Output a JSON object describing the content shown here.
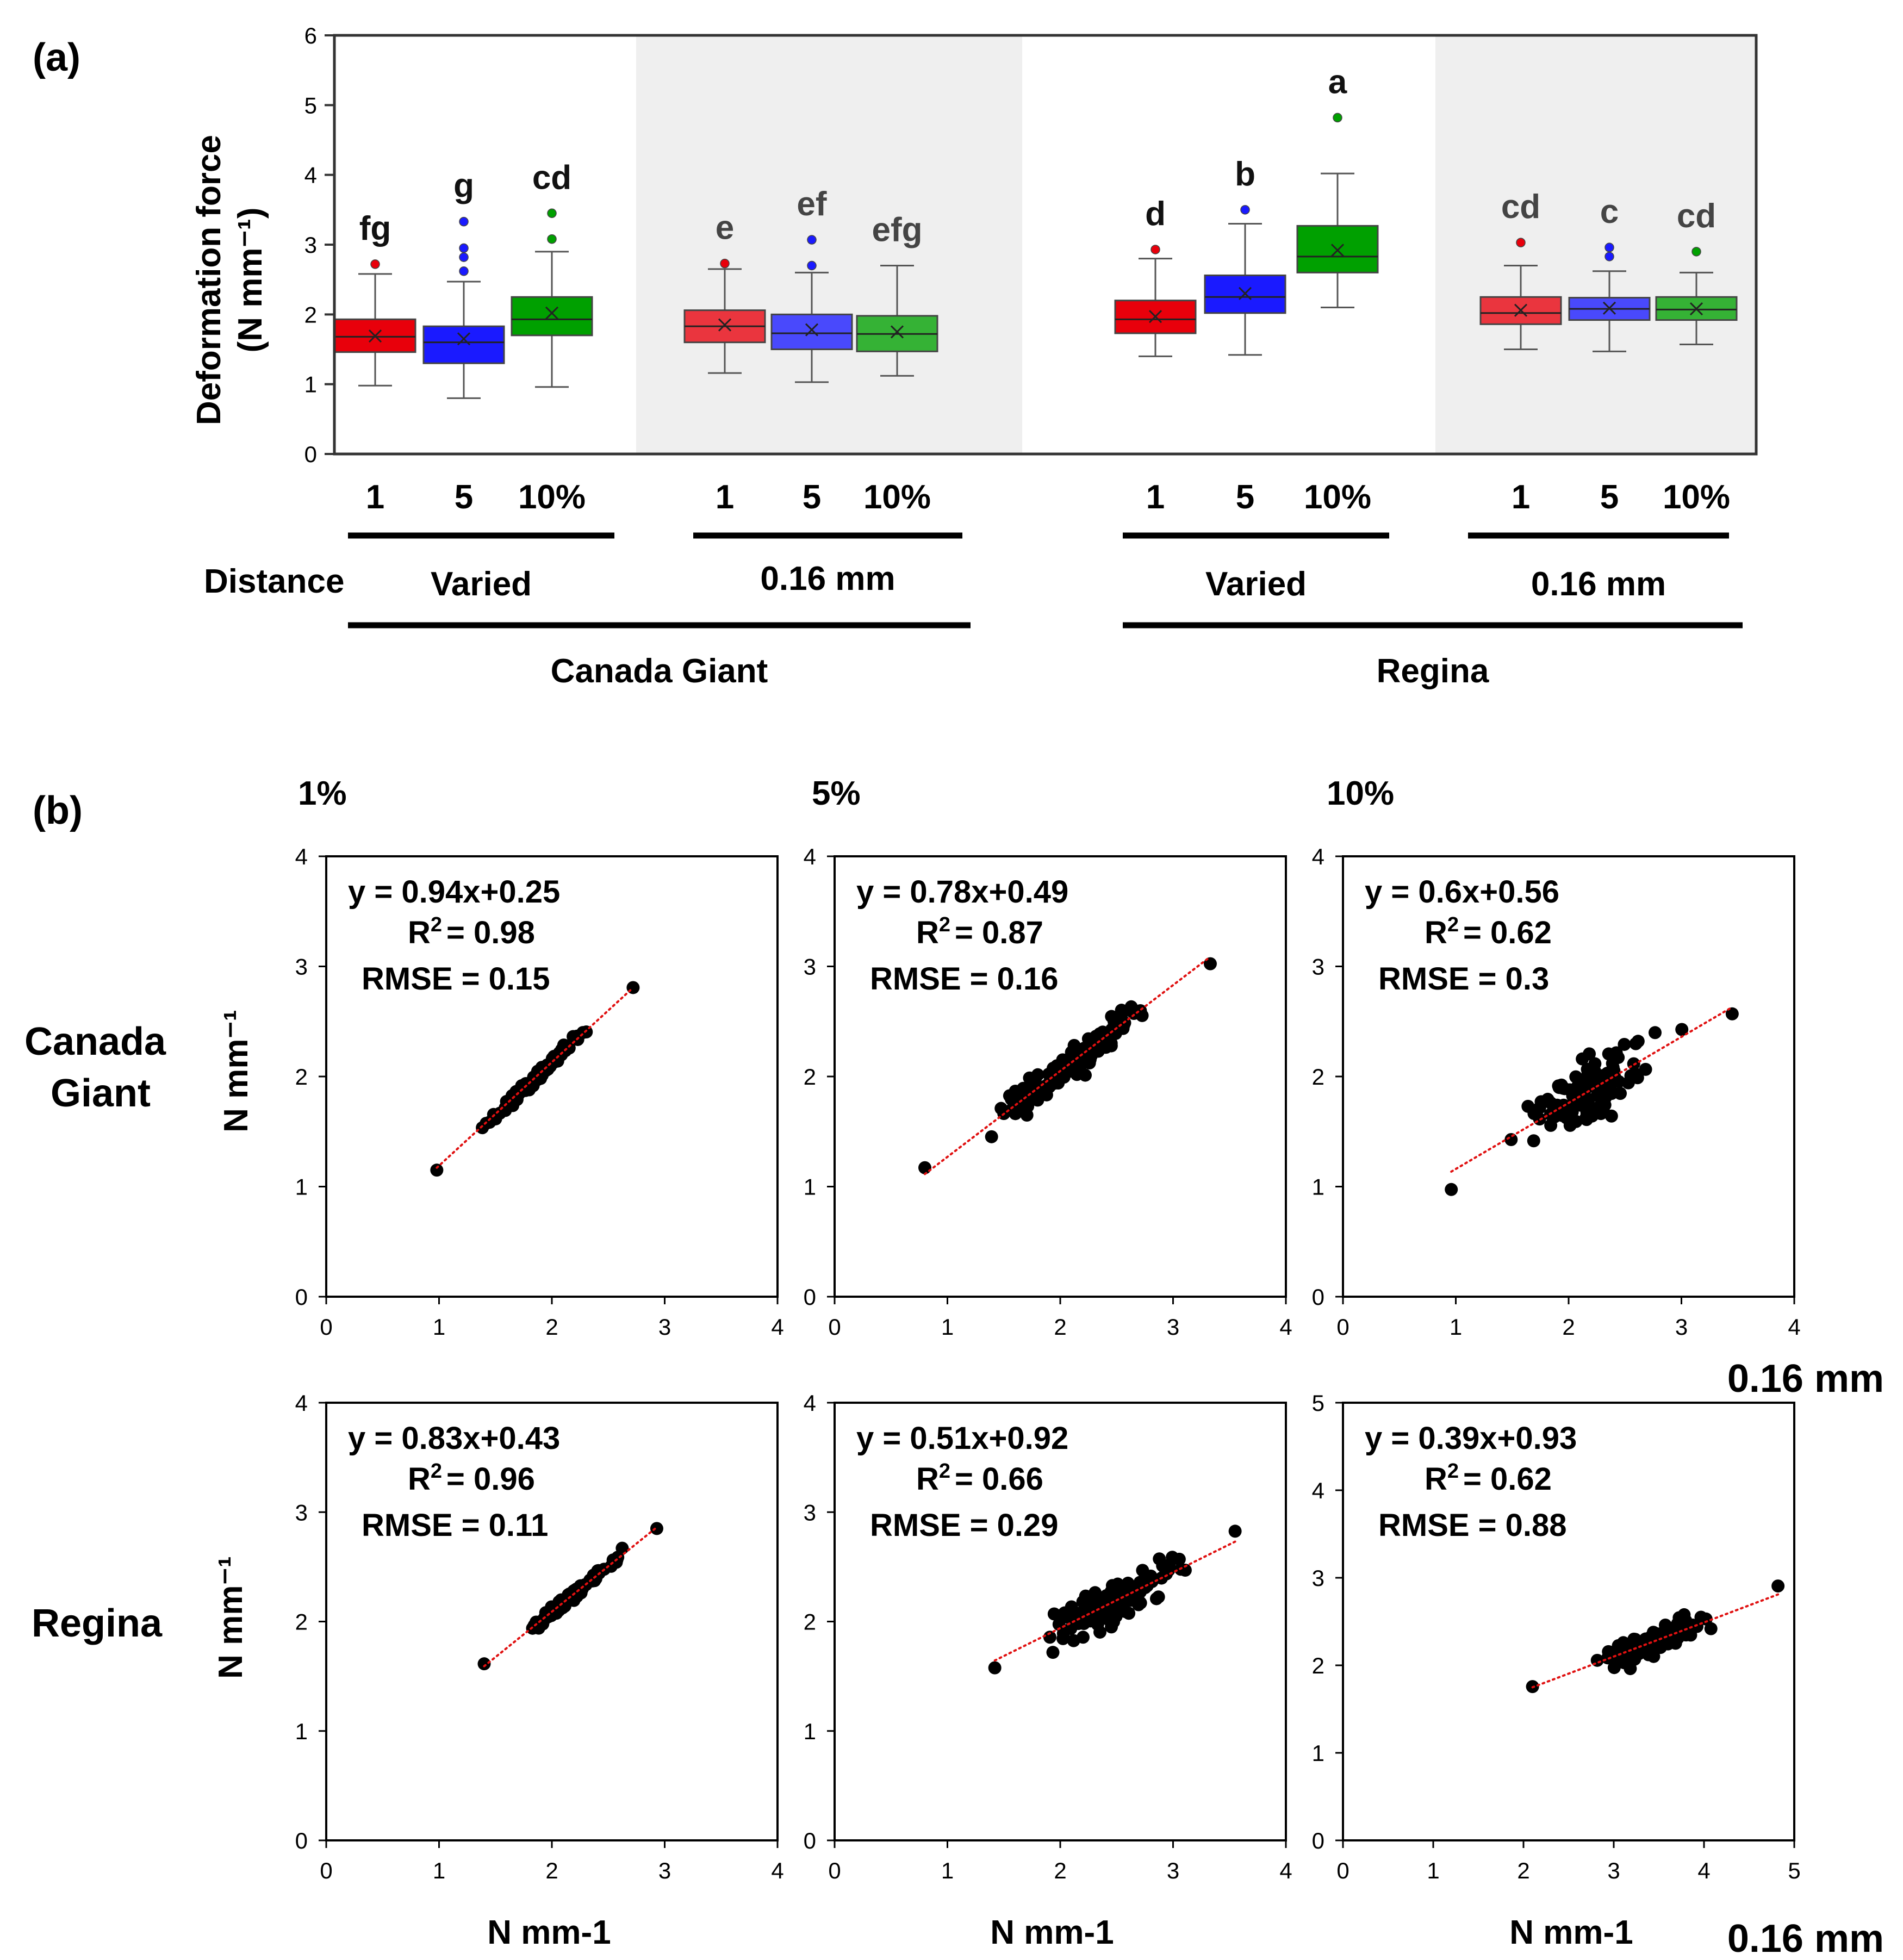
{
  "chart_data": [
    {
      "panel_label": "(a)",
      "type": "box",
      "ylabel": "Deformation force",
      "ylabel_unit": "(N mm⁻¹)",
      "ylim": [
        0,
        6
      ],
      "yticks": [
        "0",
        "1",
        "2",
        "3",
        "4",
        "5",
        "6"
      ],
      "distance_label": "Distance",
      "colors": {
        "1": "#e8000b",
        "5": "#1a1aff",
        "10%": "#00a000"
      },
      "shaded_groups": [
        1,
        3
      ],
      "cultivars": [
        {
          "name": "Canada Giant",
          "groups": [
            0,
            1
          ]
        },
        {
          "name": "Regina",
          "groups": [
            2,
            3
          ]
        }
      ],
      "groups": [
        {
          "distance": "Varied",
          "boxes": [
            {
              "category": "1",
              "min": 0.98,
              "q1": 1.46,
              "median": 1.68,
              "q3": 1.93,
              "max": 2.58,
              "mean": 1.69,
              "outliers": [
                2.72
              ],
              "letter": "fg"
            },
            {
              "category": "5",
              "min": 0.8,
              "q1": 1.3,
              "median": 1.6,
              "q3": 1.83,
              "max": 2.47,
              "mean": 1.65,
              "outliers": [
                2.62,
                2.82,
                2.95,
                3.33
              ],
              "letter": "g"
            },
            {
              "category": "10%",
              "min": 0.96,
              "q1": 1.7,
              "median": 1.93,
              "q3": 2.25,
              "max": 2.9,
              "mean": 2.02,
              "outliers": [
                3.08,
                3.45
              ],
              "letter": "cd"
            }
          ]
        },
        {
          "distance": "0.16 mm",
          "boxes": [
            {
              "category": "1",
              "min": 1.16,
              "q1": 1.6,
              "median": 1.83,
              "q3": 2.06,
              "max": 2.65,
              "mean": 1.85,
              "outliers": [
                2.73
              ],
              "letter": "e"
            },
            {
              "category": "5",
              "min": 1.03,
              "q1": 1.5,
              "median": 1.73,
              "q3": 2.0,
              "max": 2.6,
              "mean": 1.78,
              "outliers": [
                2.7,
                3.07
              ],
              "letter": "ef"
            },
            {
              "category": "10%",
              "min": 1.12,
              "q1": 1.47,
              "median": 1.72,
              "q3": 1.98,
              "max": 2.7,
              "mean": 1.75,
              "outliers": [],
              "letter": "efg"
            }
          ]
        },
        {
          "distance": "Varied",
          "boxes": [
            {
              "category": "1",
              "min": 1.4,
              "q1": 1.73,
              "median": 1.93,
              "q3": 2.2,
              "max": 2.8,
              "mean": 1.97,
              "outliers": [
                2.93
              ],
              "letter": "d"
            },
            {
              "category": "5",
              "min": 1.42,
              "q1": 2.02,
              "median": 2.25,
              "q3": 2.56,
              "max": 3.3,
              "mean": 2.3,
              "outliers": [
                3.5
              ],
              "letter": "b"
            },
            {
              "category": "10%",
              "min": 2.1,
              "q1": 2.6,
              "median": 2.83,
              "q3": 3.27,
              "max": 4.02,
              "mean": 2.92,
              "outliers": [
                4.82
              ],
              "letter": "a"
            }
          ]
        },
        {
          "distance": "0.16 mm",
          "boxes": [
            {
              "category": "1",
              "min": 1.5,
              "q1": 1.86,
              "median": 2.02,
              "q3": 2.25,
              "max": 2.7,
              "mean": 2.06,
              "outliers": [
                3.03
              ],
              "letter": "cd"
            },
            {
              "category": "5",
              "min": 1.47,
              "q1": 1.92,
              "median": 2.08,
              "q3": 2.24,
              "max": 2.62,
              "mean": 2.09,
              "outliers": [
                2.83,
                2.96
              ],
              "letter": "c"
            },
            {
              "category": "10%",
              "min": 1.57,
              "q1": 1.92,
              "median": 2.07,
              "q3": 2.25,
              "max": 2.6,
              "mean": 2.08,
              "outliers": [
                2.9
              ],
              "letter": "cd"
            }
          ]
        }
      ]
    },
    {
      "panel_label": "(b)",
      "type": "scatter",
      "column_headers": [
        "1%",
        "5%",
        "10%"
      ],
      "row_headers": [
        [
          "Canada",
          "Giant"
        ],
        [
          "Regina"
        ]
      ],
      "ylabel": "N mm⁻¹",
      "xlabel": "N mm-1",
      "xaxis_caption": "0.16 mm",
      "panels": [
        {
          "row": 0,
          "col": 0,
          "xlim": [
            0,
            4
          ],
          "ylim": [
            0,
            4
          ],
          "xticks": [
            "0",
            "1",
            "2",
            "3",
            "4"
          ],
          "yticks": [
            "0",
            "1",
            "2",
            "3",
            "4"
          ],
          "slope": 0.94,
          "intercept": 0.25,
          "fit_range": [
            0.98,
            2.72
          ],
          "spread": 0.04,
          "n": 110,
          "eq": "y = 0.94x+0.25",
          "r2": "= 0.98",
          "rmse": "RMSE = 0.15"
        },
        {
          "row": 0,
          "col": 1,
          "xlim": [
            0,
            4
          ],
          "ylim": [
            0,
            4
          ],
          "xticks": [
            "0",
            "1",
            "2",
            "3",
            "4"
          ],
          "yticks": [
            "0",
            "1",
            "2",
            "3",
            "4"
          ],
          "slope": 0.78,
          "intercept": 0.49,
          "fit_range": [
            0.8,
            3.33
          ],
          "spread": 0.13,
          "n": 130,
          "eq": "y = 0.78x+0.49",
          "r2": "= 0.87",
          "rmse": "RMSE = 0.16"
        },
        {
          "row": 0,
          "col": 2,
          "xlim": [
            0,
            4
          ],
          "ylim": [
            0,
            4
          ],
          "xticks": [
            "0",
            "1",
            "2",
            "3",
            "4"
          ],
          "yticks": [
            "0",
            "1",
            "2",
            "3",
            "4"
          ],
          "slope": 0.6,
          "intercept": 0.56,
          "fit_range": [
            0.96,
            3.45
          ],
          "spread": 0.22,
          "n": 120,
          "eq": "y = 0.6x+0.56",
          "r2": "= 0.62",
          "rmse": "RMSE = 0.3"
        },
        {
          "row": 1,
          "col": 0,
          "xlim": [
            0,
            4
          ],
          "ylim": [
            0,
            4
          ],
          "xticks": [
            "0",
            "1",
            "2",
            "3",
            "4"
          ],
          "yticks": [
            "0",
            "1",
            "2",
            "3",
            "4"
          ],
          "slope": 0.83,
          "intercept": 0.43,
          "fit_range": [
            1.4,
            2.93
          ],
          "spread": 0.04,
          "n": 110,
          "eq": "y = 0.83x+0.43",
          "r2": "= 0.96",
          "rmse": "RMSE = 0.11"
        },
        {
          "row": 1,
          "col": 1,
          "xlim": [
            0,
            4
          ],
          "ylim": [
            0,
            4
          ],
          "xticks": [
            "0",
            "1",
            "2",
            "3",
            "4"
          ],
          "yticks": [
            "0",
            "1",
            "2",
            "3",
            "4"
          ],
          "slope": 0.51,
          "intercept": 0.92,
          "fit_range": [
            1.42,
            3.55
          ],
          "spread": 0.16,
          "n": 130,
          "eq": "y = 0.51x+0.92",
          "r2": "= 0.66",
          "rmse": "RMSE = 0.29"
        },
        {
          "row": 1,
          "col": 2,
          "xlim": [
            0,
            5
          ],
          "ylim": [
            0,
            5
          ],
          "xticks": [
            "0",
            "1",
            "2",
            "3",
            "4",
            "5"
          ],
          "yticks": [
            "0",
            "1",
            "2",
            "3",
            "4",
            "5"
          ],
          "slope": 0.39,
          "intercept": 0.93,
          "fit_range": [
            2.1,
            4.82
          ],
          "spread": 0.12,
          "n": 130,
          "eq": "y = 0.39x+0.93",
          "r2": "= 0.62",
          "rmse": "RMSE = 0.88"
        }
      ]
    }
  ]
}
